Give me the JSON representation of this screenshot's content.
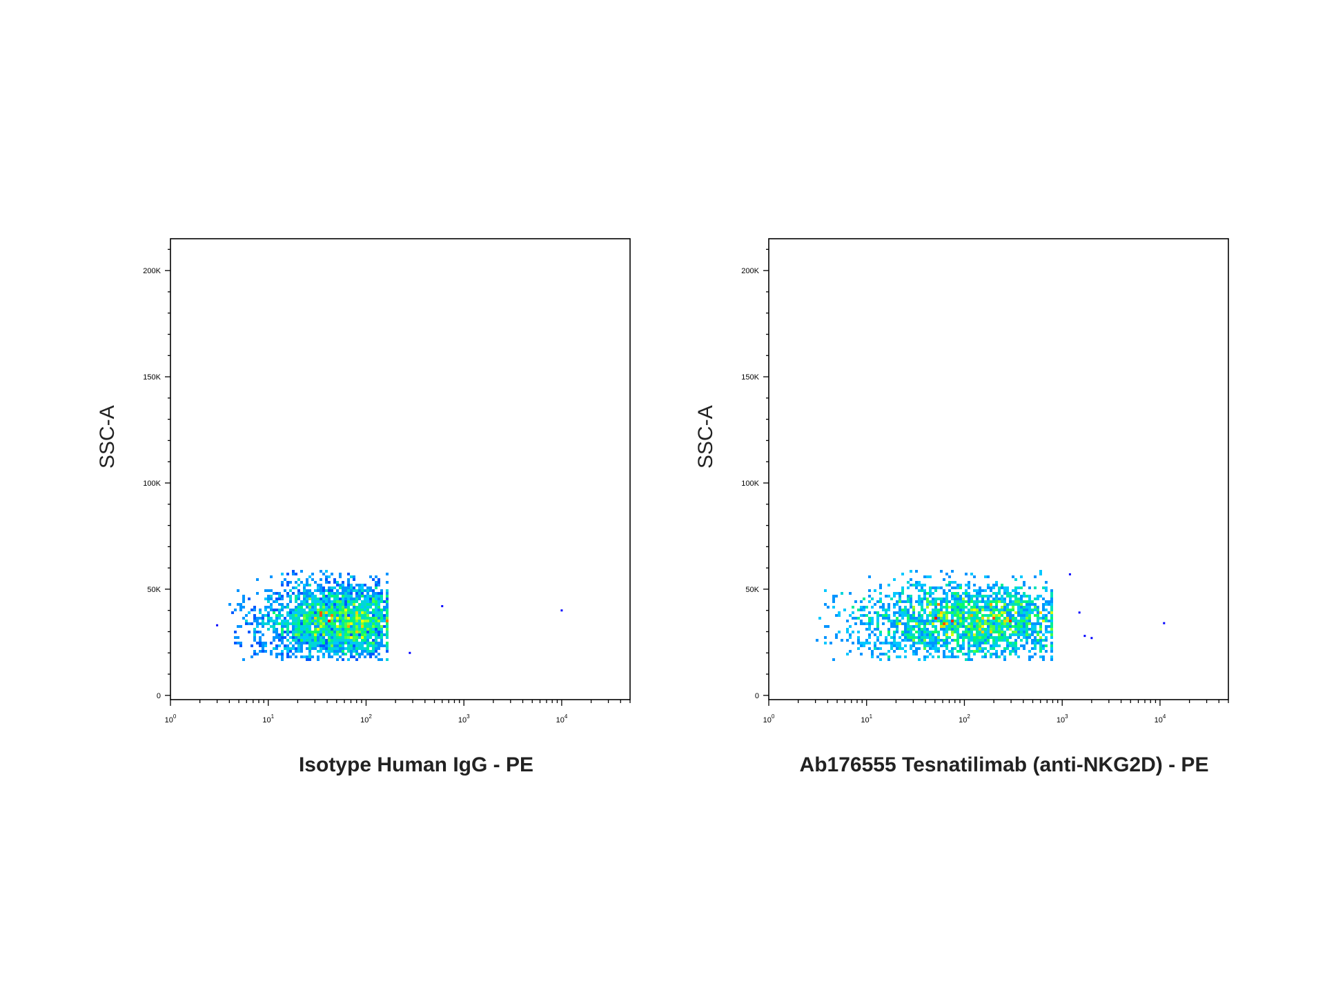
{
  "chart_data": [
    {
      "type": "scatter",
      "subtype": "flow-cytometry density dot plot",
      "xlabel": "Isotype Human IgG - PE",
      "ylabel": "SSC-A",
      "xscale": "log",
      "xlim": [
        1,
        50000
      ],
      "ylim": [
        -2000,
        215000
      ],
      "x_ticks": [
        {
          "value": 1,
          "base": "10",
          "exp": "0"
        },
        {
          "value": 10,
          "base": "10",
          "exp": "1"
        },
        {
          "value": 100,
          "base": "10",
          "exp": "2"
        },
        {
          "value": 1000,
          "base": "10",
          "exp": "3"
        },
        {
          "value": 10000,
          "base": "10",
          "exp": "4"
        }
      ],
      "y_ticks": [
        {
          "value": 0,
          "label": "0"
        },
        {
          "value": 50000,
          "label": "50K"
        },
        {
          "value": 100000,
          "label": "100K"
        },
        {
          "value": 150000,
          "label": "150K"
        },
        {
          "value": 200000,
          "label": "200K"
        }
      ],
      "population": {
        "x_range": [
          3.5,
          150
        ],
        "x_peak": 60,
        "y_range": [
          17000,
          58000
        ],
        "y_peak": 35000
      },
      "outliers": [
        {
          "x": 600,
          "y": 42000
        },
        {
          "x": 10000,
          "y": 40000
        },
        {
          "x": 280,
          "y": 20000
        },
        {
          "x": 3,
          "y": 33000
        }
      ],
      "grid": false,
      "colormap": [
        "#0000ff",
        "#00c8ff",
        "#00ff66",
        "#ffff00",
        "#ff0000"
      ]
    },
    {
      "type": "scatter",
      "subtype": "flow-cytometry density dot plot",
      "xlabel": "Ab176555 Tesnatilimab (anti-NKG2D) - PE",
      "ylabel": "SSC-A",
      "xscale": "log",
      "xlim": [
        1,
        50000
      ],
      "ylim": [
        -2000,
        215000
      ],
      "x_ticks": [
        {
          "value": 1,
          "base": "10",
          "exp": "0"
        },
        {
          "value": 10,
          "base": "10",
          "exp": "1"
        },
        {
          "value": 100,
          "base": "10",
          "exp": "2"
        },
        {
          "value": 1000,
          "base": "10",
          "exp": "3"
        },
        {
          "value": 10000,
          "base": "10",
          "exp": "4"
        }
      ],
      "y_ticks": [
        {
          "value": 0,
          "label": "0"
        },
        {
          "value": 50000,
          "label": "50K"
        },
        {
          "value": 100000,
          "label": "100K"
        },
        {
          "value": 150000,
          "label": "150K"
        },
        {
          "value": 200000,
          "label": "200K"
        }
      ],
      "population": {
        "x_range": [
          3.5,
          700
        ],
        "x_peak": 130,
        "y_range": [
          17000,
          58000
        ],
        "y_peak": 35000
      },
      "outliers": [
        {
          "x": 1200,
          "y": 57000
        },
        {
          "x": 1500,
          "y": 39000
        },
        {
          "x": 1700,
          "y": 28000
        },
        {
          "x": 2000,
          "y": 27000
        },
        {
          "x": 11000,
          "y": 34000
        }
      ],
      "grid": false,
      "colormap": [
        "#0000ff",
        "#00c8ff",
        "#00ff66",
        "#ffff00",
        "#ff0000"
      ]
    }
  ]
}
